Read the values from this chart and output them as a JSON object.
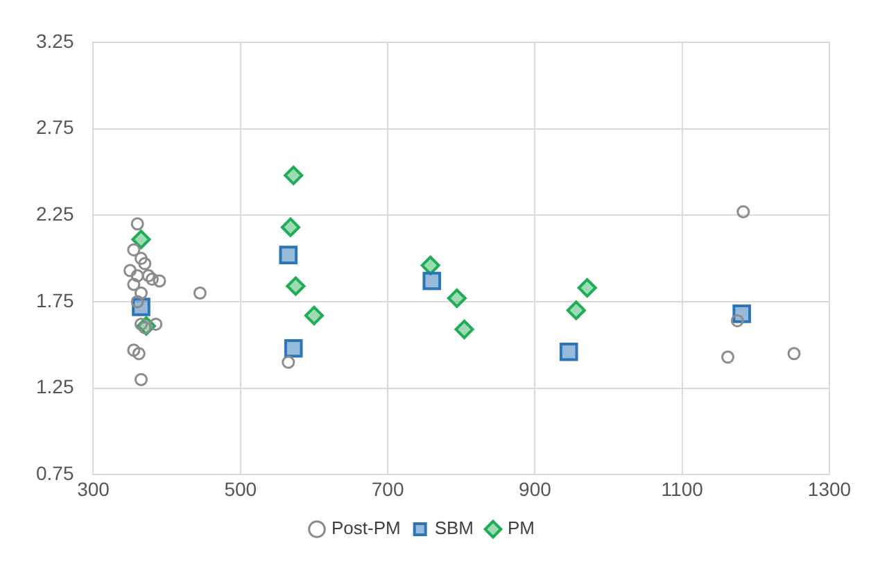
{
  "chart_data": {
    "type": "scatter",
    "xlim": [
      300,
      1300
    ],
    "xticks": [
      300,
      500,
      700,
      900,
      1100,
      1300
    ],
    "ylim": [
      0.75,
      3.25
    ],
    "yticks": [
      0.75,
      1.25,
      1.75,
      2.25,
      2.75,
      3.25
    ],
    "grid": true,
    "legend": "bottom",
    "series": [
      {
        "name": "Post-PM",
        "color": "#8c8c8c",
        "marker": "circle",
        "x": [
          360,
          355,
          365,
          370,
          350,
          360,
          375,
          390,
          355,
          365,
          380,
          360,
          365,
          385,
          355,
          362,
          365,
          370,
          445,
          565,
          1183,
          1175,
          1162,
          1252
        ],
        "values": [
          2.2,
          2.05,
          2.0,
          1.97,
          1.93,
          1.9,
          1.9,
          1.87,
          1.85,
          1.8,
          1.88,
          1.75,
          1.62,
          1.62,
          1.47,
          1.45,
          1.3,
          1.6,
          1.8,
          1.4,
          2.27,
          1.64,
          1.43,
          1.45
        ]
      },
      {
        "name": "SBM",
        "color": "#2e75b6",
        "marker": "square",
        "x": [
          365,
          565,
          572,
          760,
          946,
          1181
        ],
        "values": [
          1.72,
          2.02,
          1.48,
          1.87,
          1.46,
          1.68
        ]
      },
      {
        "name": "PM",
        "color": "#1fad55",
        "marker": "diamond",
        "x": [
          365,
          372,
          572,
          568,
          575,
          600,
          758,
          794,
          804,
          956,
          971
        ],
        "values": [
          2.11,
          1.61,
          2.48,
          2.18,
          1.84,
          1.67,
          1.96,
          1.77,
          1.59,
          1.7,
          1.83
        ]
      }
    ]
  }
}
